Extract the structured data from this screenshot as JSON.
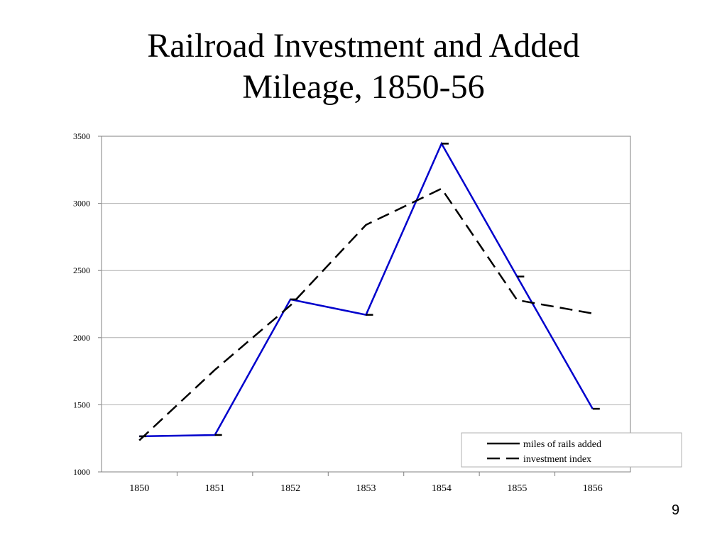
{
  "slide": {
    "title_lines": [
      "Railroad Investment and Added",
      "Mileage, 1850-56"
    ],
    "page_number": "9"
  },
  "chart_data": {
    "type": "line",
    "title": "",
    "xlabel": "",
    "ylabel": "",
    "categories": [
      "1850",
      "1851",
      "1852",
      "1853",
      "1854",
      "1855",
      "1856"
    ],
    "ylim": [
      1000,
      3500
    ],
    "yticks": [
      "1000",
      "1500",
      "2000",
      "2500",
      "3000",
      "3500"
    ],
    "grid": true,
    "legend_position": "bottom-right",
    "series": [
      {
        "name": "miles of rails added",
        "values": [
          1265,
          1275,
          2285,
          2170,
          3445,
          2455,
          1470
        ],
        "color": "#0000cc",
        "style": "solid",
        "legend_color": "#000000"
      },
      {
        "name": "investment index",
        "values": [
          1235,
          1760,
          2240,
          2840,
          3110,
          2280,
          2180
        ],
        "color": "#000000",
        "style": "dashed"
      }
    ]
  }
}
